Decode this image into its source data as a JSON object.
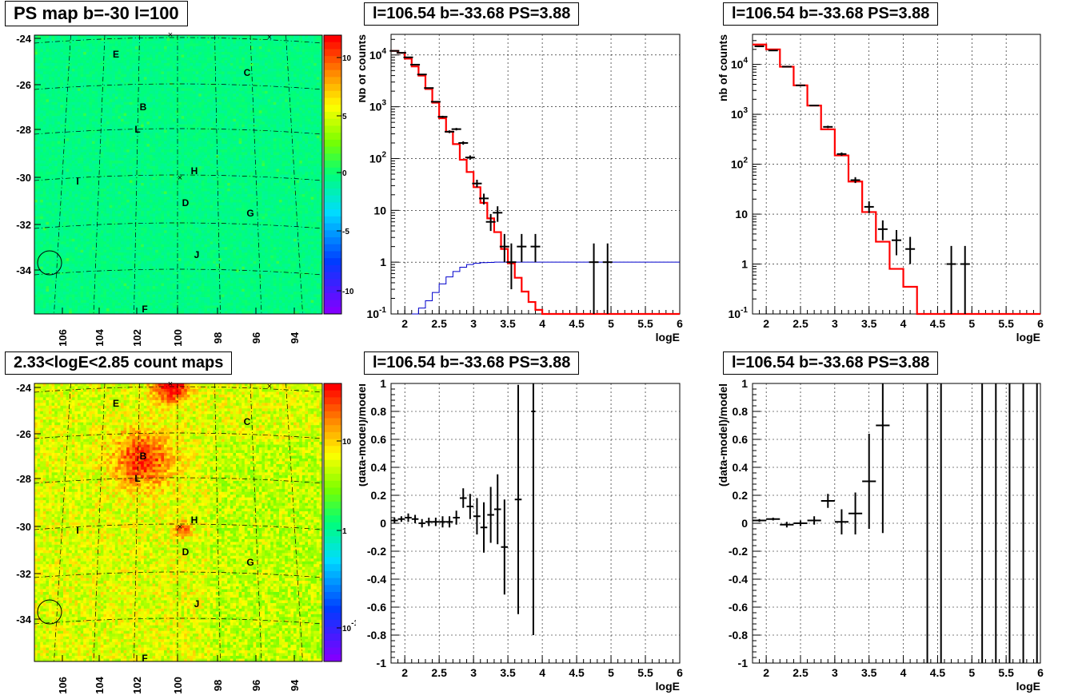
{
  "colors": {
    "data": "#000000",
    "model": "#ff0000",
    "acceptance": "#0000cc",
    "grid": "#000000"
  },
  "panels": {
    "p1": {
      "title": "PS map b=-30 l=100"
    },
    "p2": {
      "title": "l=106.54 b=-33.68 PS=3.88"
    },
    "p3": {
      "title": "l=106.54 b=-33.68 PS=3.88"
    },
    "p4": {
      "title": "2.33<logE<2.85 count maps"
    },
    "p5": {
      "title": "l=106.54 b=-33.68 PS=3.88"
    },
    "p6": {
      "title": "l=106.54 b=-33.68 PS=3.88"
    }
  },
  "chart_data": [
    {
      "id": "p1",
      "type": "heatmap",
      "title": "PS map b=-30 l=100",
      "xlabel": "",
      "ylabel": "",
      "x_ticks": [
        "106",
        "104",
        "102",
        "100",
        "98",
        "96",
        "94"
      ],
      "y_ticks": [
        "-24",
        "-26",
        "-28",
        "-30",
        "-32",
        "-34"
      ],
      "colorbar_ticks": [
        "10",
        "5",
        "0",
        "-5",
        "-10"
      ],
      "colorbar_range": [
        -12,
        12
      ],
      "colormap": "rainbow",
      "dominant_value": 0,
      "source_labels": [
        "E",
        "C",
        "B",
        "L",
        "H",
        "I",
        "D",
        "G",
        "J",
        "F"
      ],
      "grid": true
    },
    {
      "id": "p2",
      "type": "line",
      "title": "l=106.54 b=-33.68 PS=3.88",
      "xlabel": "logE",
      "ylabel": "Nb of counts",
      "xlim": [
        1.8,
        6
      ],
      "ylim": [
        0.1,
        25000
      ],
      "yscale": "log",
      "x_ticks": [
        "2",
        "2.5",
        "3",
        "3.5",
        "4",
        "4.5",
        "5",
        "5.5",
        "6"
      ],
      "y_ticks": [
        "10^4",
        "10^3",
        "10^2",
        "10",
        "1",
        "10^-1"
      ],
      "grid": true,
      "series": [
        {
          "kind": "model",
          "edges": [
            1.8,
            1.9,
            2.0,
            2.1,
            2.2,
            2.3,
            2.4,
            2.5,
            2.6,
            2.7,
            2.8,
            2.9,
            3.0,
            3.1,
            3.2,
            3.3,
            3.4,
            3.5,
            3.6,
            3.7,
            3.8,
            3.9,
            4.0,
            4.1,
            4.2,
            4.3,
            6.0
          ],
          "values": [
            12000,
            11000,
            8500,
            6000,
            4000,
            2200,
            1200,
            600,
            330,
            190,
            95,
            55,
            28,
            14,
            7,
            3.8,
            1.8,
            0.95,
            0.5,
            0.27,
            0.17,
            0.12,
            0.1,
            0.1,
            0.1,
            0.1
          ]
        },
        {
          "kind": "acceptance",
          "edges": [
            2.1,
            2.2,
            2.3,
            2.4,
            2.5,
            2.6,
            2.7,
            2.8,
            2.9,
            3.0,
            3.1,
            3.2,
            3.3,
            6.0
          ],
          "values": [
            0.1,
            0.13,
            0.18,
            0.26,
            0.38,
            0.52,
            0.66,
            0.8,
            0.9,
            0.95,
            0.98,
            0.99,
            1.0
          ]
        },
        {
          "kind": "data",
          "points": [
            {
              "x": 1.85,
              "y": 12000,
              "lo": 11800,
              "hi": 12200
            },
            {
              "x": 1.95,
              "y": 11000,
              "lo": 10800,
              "hi": 11200
            },
            {
              "x": 2.05,
              "y": 9000,
              "lo": 8800,
              "hi": 9200
            },
            {
              "x": 2.15,
              "y": 6500,
              "lo": 6350,
              "hi": 6650
            },
            {
              "x": 2.25,
              "y": 4200,
              "lo": 4100,
              "hi": 4300
            },
            {
              "x": 2.35,
              "y": 2300,
              "lo": 2250,
              "hi": 2350
            },
            {
              "x": 2.45,
              "y": 1250,
              "lo": 1210,
              "hi": 1290
            },
            {
              "x": 2.55,
              "y": 640,
              "lo": 610,
              "hi": 670
            },
            {
              "x": 2.65,
              "y": 330,
              "lo": 310,
              "hi": 350
            },
            {
              "x": 2.75,
              "y": 370,
              "lo": 350,
              "hi": 390
            },
            {
              "x": 2.85,
              "y": 200,
              "lo": 185,
              "hi": 215
            },
            {
              "x": 2.95,
              "y": 105,
              "lo": 95,
              "hi": 115
            },
            {
              "x": 3.05,
              "y": 33,
              "lo": 28,
              "hi": 39
            },
            {
              "x": 3.15,
              "y": 17,
              "lo": 13,
              "hi": 21
            },
            {
              "x": 3.25,
              "y": 6,
              "lo": 4,
              "hi": 8.5
            },
            {
              "x": 3.35,
              "y": 9,
              "lo": 6,
              "hi": 12
            },
            {
              "x": 3.45,
              "y": 2,
              "lo": 1,
              "hi": 3.5
            },
            {
              "x": 3.55,
              "y": 1,
              "lo": 0.3,
              "hi": 2.3
            },
            {
              "x": 3.7,
              "y": 2,
              "lo": 1,
              "hi": 3.5
            },
            {
              "x": 3.9,
              "y": 2,
              "lo": 1,
              "hi": 3.5
            },
            {
              "x": 4.75,
              "y": 1,
              "lo": 0.1,
              "hi": 2.3
            },
            {
              "x": 4.95,
              "y": 1,
              "lo": 0.1,
              "hi": 2.3
            }
          ]
        }
      ]
    },
    {
      "id": "p3",
      "type": "line",
      "title": "l=106.54 b=-33.68 PS=3.88",
      "xlabel": "logE",
      "ylabel": "nb of counts",
      "xlim": [
        1.8,
        6
      ],
      "ylim": [
        0.1,
        40000
      ],
      "yscale": "log",
      "x_ticks": [
        "2",
        "2.5",
        "3",
        "3.5",
        "4",
        "4.5",
        "5",
        "5.5",
        "6"
      ],
      "y_ticks": [
        "10^4",
        "10^3",
        "10^2",
        "10",
        "1",
        "10^-1"
      ],
      "grid": true,
      "series": [
        {
          "kind": "model",
          "edges": [
            1.8,
            2.0,
            2.2,
            2.4,
            2.6,
            2.8,
            3.0,
            3.2,
            3.4,
            3.6,
            3.8,
            4.0,
            4.2,
            6.0
          ],
          "values": [
            25000,
            20000,
            9000,
            3800,
            1500,
            500,
            150,
            45,
            11,
            2.8,
            0.8,
            0.35,
            0.1
          ]
        },
        {
          "kind": "data",
          "points": [
            {
              "x": 1.9,
              "y": 23000,
              "lo": 22700,
              "hi": 23300
            },
            {
              "x": 2.1,
              "y": 19000,
              "lo": 18700,
              "hi": 19300
            },
            {
              "x": 2.3,
              "y": 9000,
              "lo": 8800,
              "hi": 9200
            },
            {
              "x": 2.5,
              "y": 3800,
              "lo": 3700,
              "hi": 3900
            },
            {
              "x": 2.7,
              "y": 1500,
              "lo": 1450,
              "hi": 1550
            },
            {
              "x": 2.9,
              "y": 560,
              "lo": 530,
              "hi": 590
            },
            {
              "x": 3.1,
              "y": 160,
              "lo": 148,
              "hi": 172
            },
            {
              "x": 3.3,
              "y": 48,
              "lo": 42,
              "hi": 55
            },
            {
              "x": 3.5,
              "y": 14,
              "lo": 10.5,
              "hi": 18
            },
            {
              "x": 3.7,
              "y": 5,
              "lo": 3,
              "hi": 7.5
            },
            {
              "x": 3.9,
              "y": 3,
              "lo": 1.5,
              "hi": 4.8
            },
            {
              "x": 4.1,
              "y": 2,
              "lo": 1,
              "hi": 3.5
            },
            {
              "x": 4.7,
              "y": 1,
              "lo": 0.1,
              "hi": 2.3
            },
            {
              "x": 4.9,
              "y": 1,
              "lo": 0.1,
              "hi": 2.3
            }
          ]
        }
      ]
    },
    {
      "id": "p4",
      "type": "heatmap",
      "title": "2.33<logE<2.85 count maps",
      "xlabel": "",
      "ylabel": "",
      "x_ticks": [
        "106",
        "104",
        "102",
        "100",
        "98",
        "96",
        "94"
      ],
      "y_ticks": [
        "-24",
        "-26",
        "-28",
        "-30",
        "-32",
        "-34"
      ],
      "colorbar_ticks": [
        "10",
        "1",
        "10^-1"
      ],
      "colorbar_scale": "log",
      "colormap": "rainbow",
      "source_labels": [
        "E",
        "C",
        "B",
        "L",
        "H",
        "I",
        "D",
        "G",
        "J",
        "F"
      ],
      "grid": true
    },
    {
      "id": "p5",
      "type": "scatter",
      "title": "l=106.54 b=-33.68 PS=3.88",
      "xlabel": "logE",
      "ylabel": "(data-model)/model",
      "xlim": [
        1.8,
        6
      ],
      "ylim": [
        -1,
        1
      ],
      "x_ticks": [
        "2",
        "2.5",
        "3",
        "3.5",
        "4",
        "4.5",
        "5",
        "5.5",
        "6"
      ],
      "y_ticks": [
        "1",
        "0.8",
        "0.6",
        "0.4",
        "0.2",
        "0",
        "-0.2",
        "-0.4",
        "-0.6",
        "-0.8",
        "-1"
      ],
      "grid": true,
      "points": [
        {
          "x": 1.85,
          "y": 0.02,
          "err": 0.02,
          "xw": 0.05
        },
        {
          "x": 1.95,
          "y": 0.03,
          "err": 0.02,
          "xw": 0.05
        },
        {
          "x": 2.05,
          "y": 0.04,
          "err": 0.03,
          "xw": 0.05
        },
        {
          "x": 2.15,
          "y": 0.03,
          "err": 0.03,
          "xw": 0.05
        },
        {
          "x": 2.25,
          "y": 0.0,
          "err": 0.03,
          "xw": 0.05
        },
        {
          "x": 2.35,
          "y": 0.01,
          "err": 0.03,
          "xw": 0.05
        },
        {
          "x": 2.45,
          "y": 0.01,
          "err": 0.03,
          "xw": 0.05
        },
        {
          "x": 2.55,
          "y": 0.01,
          "err": 0.04,
          "xw": 0.05
        },
        {
          "x": 2.65,
          "y": 0.01,
          "err": 0.04,
          "xw": 0.05
        },
        {
          "x": 2.75,
          "y": 0.04,
          "err": 0.05,
          "xw": 0.05
        },
        {
          "x": 2.85,
          "y": 0.18,
          "err": 0.07,
          "xw": 0.05
        },
        {
          "x": 2.95,
          "y": 0.12,
          "err": 0.09,
          "xw": 0.05
        },
        {
          "x": 3.05,
          "y": 0.05,
          "err": 0.13,
          "xw": 0.05
        },
        {
          "x": 3.15,
          "y": -0.03,
          "err": 0.18,
          "xw": 0.05
        },
        {
          "x": 3.25,
          "y": 0.06,
          "err": 0.2,
          "xw": 0.05
        },
        {
          "x": 3.35,
          "y": 0.1,
          "err": 0.25,
          "xw": 0.05
        },
        {
          "x": 3.45,
          "y": -0.17,
          "err": 0.34,
          "xw": 0.05
        },
        {
          "x": 3.65,
          "y": 0.17,
          "err": 0.82,
          "xw": 0.05
        },
        {
          "x": 3.87,
          "y": 0.8,
          "err": 1.6,
          "xw": 0.03
        }
      ]
    },
    {
      "id": "p6",
      "type": "scatter",
      "title": "l=106.54 b=-33.68 PS=3.88",
      "xlabel": "logE",
      "ylabel": "(data-model)/model",
      "xlim": [
        1.8,
        6
      ],
      "ylim": [
        -1,
        1
      ],
      "x_ticks": [
        "2",
        "2.5",
        "3",
        "3.5",
        "4",
        "4.5",
        "5",
        "5.5",
        "6"
      ],
      "y_ticks": [
        "1",
        "0.8",
        "0.6",
        "0.4",
        "0.2",
        "0",
        "-0.2",
        "-0.4",
        "-0.6",
        "-0.8",
        "-1"
      ],
      "grid": true,
      "points": [
        {
          "x": 1.9,
          "y": 0.02,
          "err": 0.01,
          "xw": 0.1
        },
        {
          "x": 2.1,
          "y": 0.03,
          "err": 0.01,
          "xw": 0.1
        },
        {
          "x": 2.3,
          "y": -0.01,
          "err": 0.02,
          "xw": 0.1
        },
        {
          "x": 2.5,
          "y": 0.0,
          "err": 0.02,
          "xw": 0.1
        },
        {
          "x": 2.7,
          "y": 0.02,
          "err": 0.03,
          "xw": 0.1
        },
        {
          "x": 2.9,
          "y": 0.16,
          "err": 0.05,
          "xw": 0.1
        },
        {
          "x": 3.1,
          "y": 0.01,
          "err": 0.09,
          "xw": 0.1
        },
        {
          "x": 3.3,
          "y": 0.07,
          "err": 0.15,
          "xw": 0.1
        },
        {
          "x": 3.5,
          "y": 0.3,
          "err": 0.34,
          "xw": 0.1
        },
        {
          "x": 3.7,
          "y": 0.7,
          "err": 0.77,
          "xw": 0.1
        },
        {
          "x": 4.35,
          "y": 0.0,
          "err": 2,
          "xw": 0
        },
        {
          "x": 4.55,
          "y": 0.0,
          "err": 2,
          "xw": 0
        },
        {
          "x": 5.15,
          "y": 0.0,
          "err": 2,
          "xw": 0
        },
        {
          "x": 5.35,
          "y": 0.0,
          "err": 2,
          "xw": 0
        },
        {
          "x": 5.55,
          "y": 0.0,
          "err": 2,
          "xw": 0
        },
        {
          "x": 5.75,
          "y": 0.0,
          "err": 2,
          "xw": 0
        },
        {
          "x": 5.95,
          "y": 0.0,
          "err": 2,
          "xw": 0
        }
      ]
    }
  ]
}
